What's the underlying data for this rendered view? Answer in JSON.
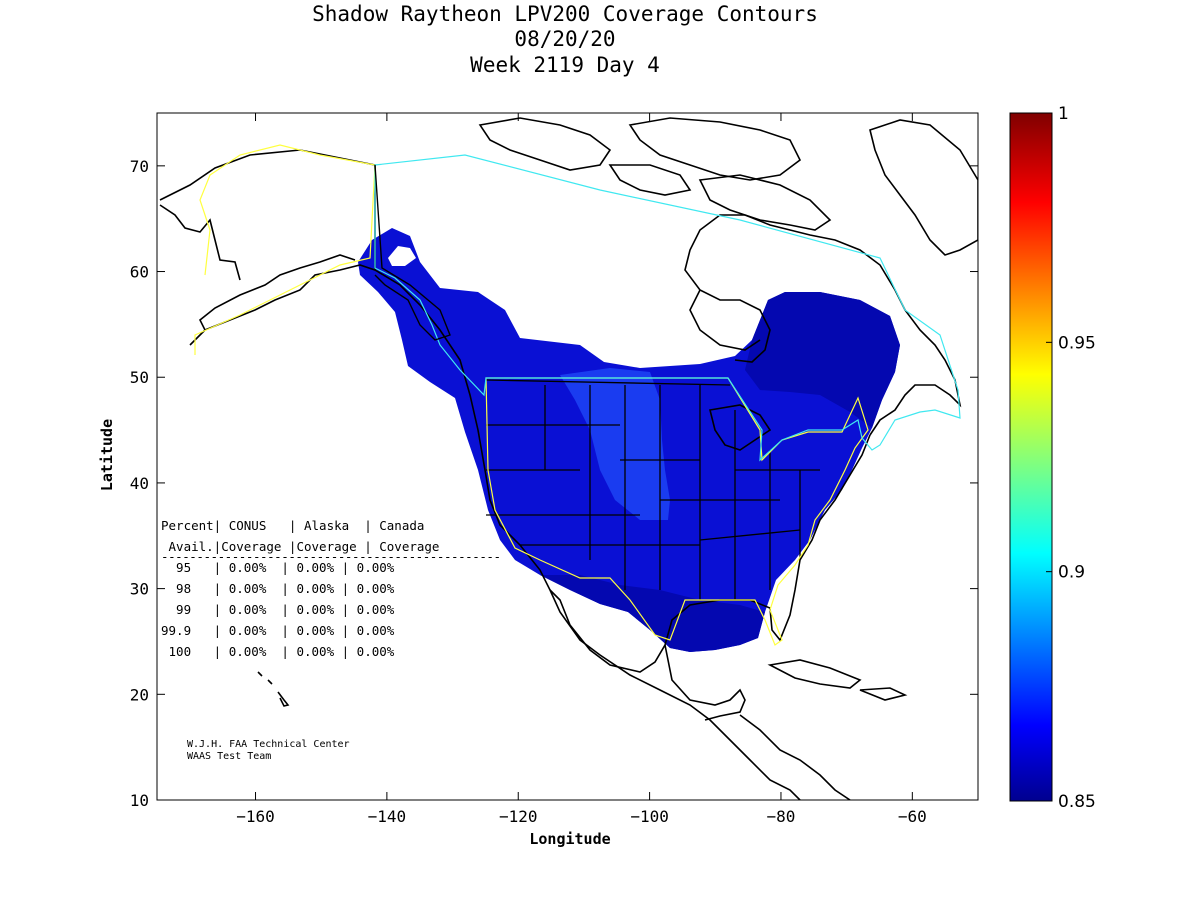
{
  "title": {
    "line1": "Shadow Raytheon LPV200 Coverage Contours",
    "line2": "08/20/20",
    "line3": "Week 2119 Day 4"
  },
  "axes": {
    "xlabel": "Longitude",
    "ylabel": "Latitude",
    "xlim": [
      -175,
      -50
    ],
    "ylim": [
      10,
      75
    ],
    "xticks": [
      -160,
      -140,
      -120,
      -100,
      -80,
      -60
    ],
    "yticks": [
      10,
      20,
      30,
      40,
      50,
      60,
      70
    ]
  },
  "colorbar": {
    "range": [
      0.85,
      1.0
    ],
    "ticks": [
      "0.85",
      "0.9",
      "0.95",
      "1"
    ],
    "tick_values": [
      0.85,
      0.9,
      0.95,
      1.0
    ],
    "colormap": "jet"
  },
  "table": {
    "header1": "Percent| CONUS   | Alaska  | Canada",
    "header2": " Avail.|Coverage |Coverage | Coverage",
    "divider": "------------------------------------------------",
    "rows": [
      "  95   | 0.00%  | 0.00% | 0.00%",
      "  98   | 0.00%  | 0.00% | 0.00%",
      "  99   | 0.00%  | 0.00% | 0.00%",
      "99.9   | 0.00%  | 0.00% | 0.00%",
      " 100   | 0.00%  | 0.00% | 0.00%"
    ]
  },
  "credit": {
    "line1": "W.J.H. FAA Technical Center",
    "line2": "WAAS Test Team"
  },
  "colors": {
    "coverage_main": "#0a10d4",
    "coverage_dark": "#0408b0",
    "coverage_light": "#1a3cf0",
    "service_area_yellow": "#ffff40",
    "canada_cyan": "#40e8f0"
  }
}
